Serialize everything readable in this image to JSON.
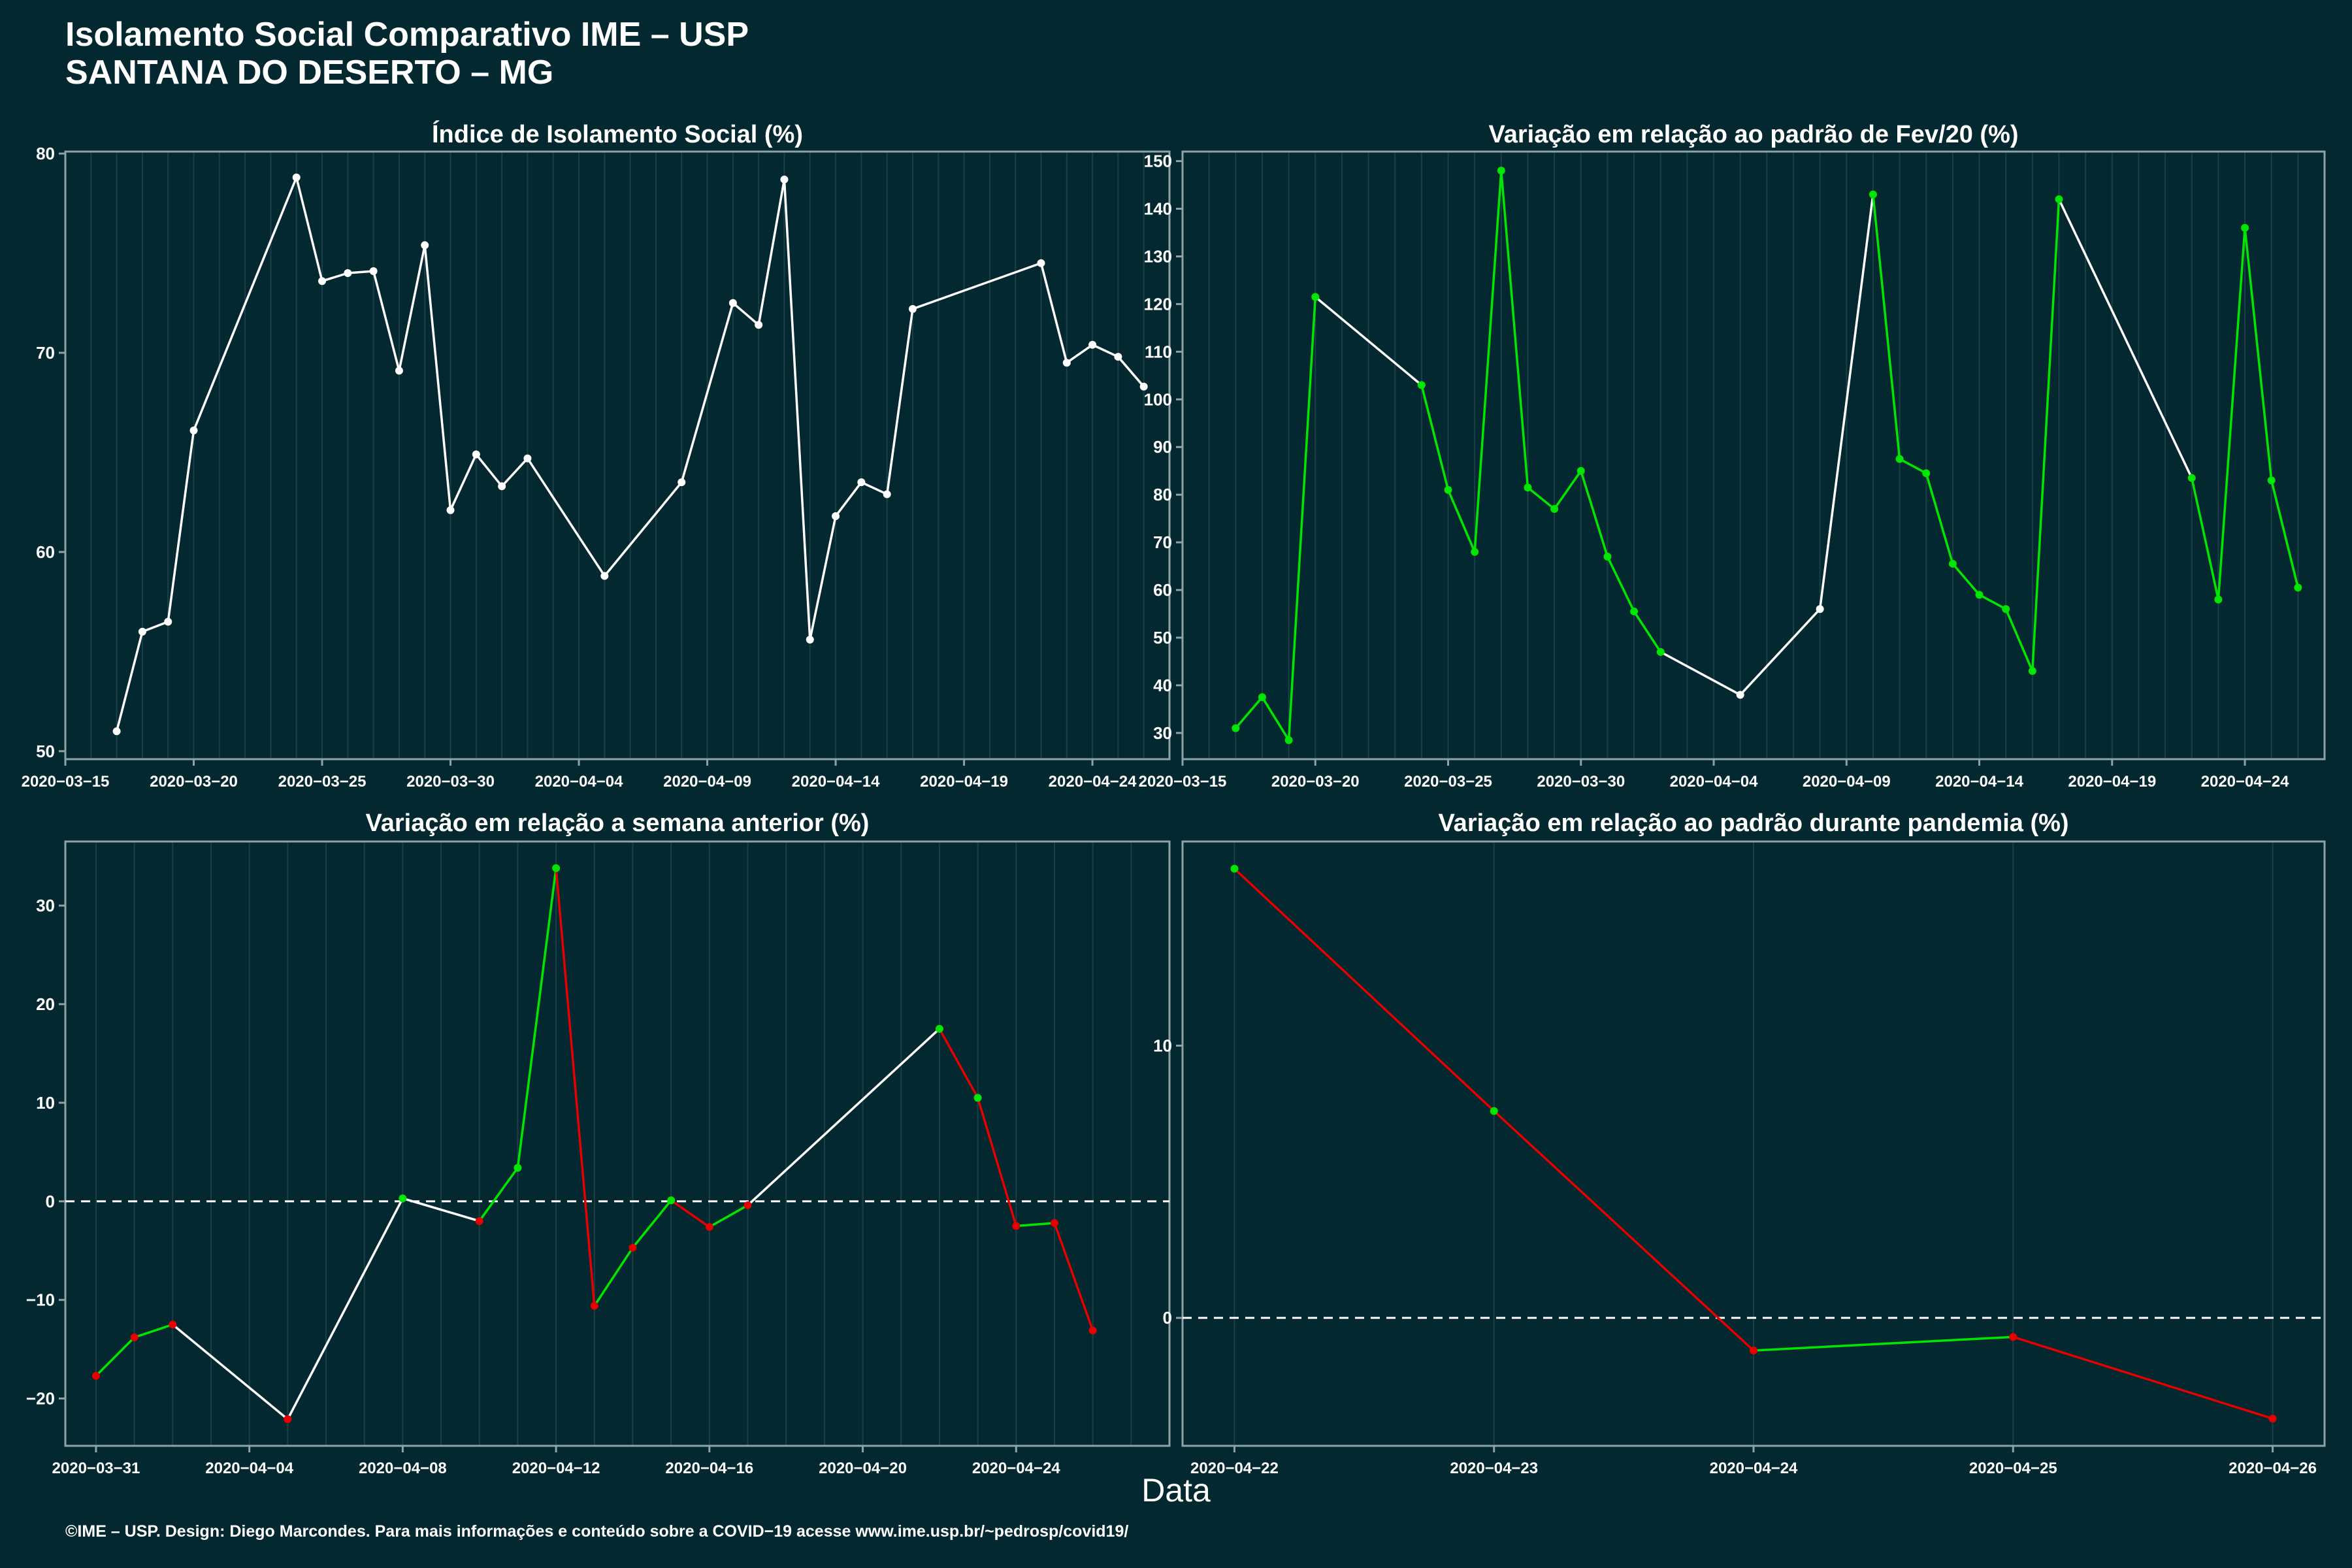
{
  "header": {
    "title_line1": "Isolamento Social Comparativo IME – USP",
    "title_line2": "SANTANA DO DESERTO – MG"
  },
  "footer": "©IME – USP. Design: Diego Marcondes. Para mais informações e conteúdo sobre a COVID−19 acesse www.ime.usp.br/~pedrosp/covid19/",
  "xlabel": "Data",
  "colors": {
    "background": "#03282f",
    "line_default": "#ffffff",
    "up": "#00e600",
    "down": "#e60000",
    "grid": "#1b3f46",
    "axis": "#8fa3a6"
  },
  "chart_data": [
    {
      "type": "line",
      "title": "Índice de Isolamento Social (%)",
      "coloring": "white",
      "x": [
        "2020-03-17",
        "2020-03-18",
        "2020-03-19",
        "2020-03-20",
        "2020-03-24",
        "2020-03-25",
        "2020-03-26",
        "2020-03-27",
        "2020-03-28",
        "2020-03-29",
        "2020-03-30",
        "2020-03-31",
        "2020-04-01",
        "2020-04-02",
        "2020-04-05",
        "2020-04-08",
        "2020-04-10",
        "2020-04-11",
        "2020-04-12",
        "2020-04-13",
        "2020-04-14",
        "2020-04-15",
        "2020-04-16",
        "2020-04-17",
        "2020-04-22",
        "2020-04-23",
        "2020-04-24",
        "2020-04-25",
        "2020-04-26"
      ],
      "y": [
        51.0,
        56.0,
        56.5,
        66.1,
        78.8,
        73.6,
        74.0,
        74.1,
        69.1,
        75.4,
        62.1,
        64.9,
        63.3,
        64.7,
        58.8,
        63.5,
        72.5,
        71.4,
        78.7,
        55.6,
        61.8,
        63.5,
        62.9,
        72.2,
        74.5,
        69.5,
        70.4,
        69.8,
        68.3
      ],
      "xlim": [
        "2020-03-15",
        "2020-04-27"
      ],
      "ylim": [
        49.6,
        80.1
      ],
      "xticks": [
        "2020-03-15",
        "2020-03-20",
        "2020-03-25",
        "2020-03-30",
        "2020-04-04",
        "2020-04-09",
        "2020-04-14",
        "2020-04-19",
        "2020-04-24"
      ],
      "yticks": [
        50,
        60,
        70,
        80
      ],
      "grid": true
    },
    {
      "type": "line",
      "title": "Variação em relação ao padrão de Fev/20 (%)",
      "coloring": "consecutive-up-green",
      "x": [
        "2020-03-17",
        "2020-03-18",
        "2020-03-19",
        "2020-03-20",
        "2020-03-24",
        "2020-03-25",
        "2020-03-26",
        "2020-03-27",
        "2020-03-28",
        "2020-03-29",
        "2020-03-30",
        "2020-03-31",
        "2020-04-01",
        "2020-04-02",
        "2020-04-05",
        "2020-04-08",
        "2020-04-10",
        "2020-04-11",
        "2020-04-12",
        "2020-04-13",
        "2020-04-14",
        "2020-04-15",
        "2020-04-16",
        "2020-04-17",
        "2020-04-22",
        "2020-04-23",
        "2020-04-24",
        "2020-04-25",
        "2020-04-26"
      ],
      "y": [
        31,
        37.5,
        28.5,
        121.5,
        103,
        81,
        68,
        148,
        81.5,
        77,
        85,
        67,
        55.5,
        47,
        38,
        56,
        143,
        87.5,
        84.5,
        65.5,
        59,
        56,
        43,
        142,
        83.5,
        58,
        136,
        83,
        60.5
      ],
      "xlim": [
        "2020-03-15",
        "2020-04-27"
      ],
      "ylim": [
        24.5,
        152
      ],
      "xticks": [
        "2020-03-15",
        "2020-03-20",
        "2020-03-25",
        "2020-03-30",
        "2020-04-04",
        "2020-04-09",
        "2020-04-14",
        "2020-04-19",
        "2020-04-24"
      ],
      "yticks": [
        30,
        40,
        50,
        60,
        70,
        80,
        90,
        100,
        110,
        120,
        130,
        140,
        150
      ],
      "grid": true
    },
    {
      "type": "line",
      "title": "Variação em relação a semana anterior (%)",
      "coloring": "sign",
      "x": [
        "2020-03-31",
        "2020-04-01",
        "2020-04-02",
        "2020-04-05",
        "2020-04-08",
        "2020-04-10",
        "2020-04-11",
        "2020-04-12",
        "2020-04-13",
        "2020-04-14",
        "2020-04-15",
        "2020-04-16",
        "2020-04-17",
        "2020-04-22",
        "2020-04-23",
        "2020-04-24",
        "2020-04-25",
        "2020-04-26"
      ],
      "y": [
        -17.7,
        -13.8,
        -12.5,
        -22.1,
        0.3,
        -2.0,
        3.4,
        33.8,
        -10.6,
        -4.7,
        0.1,
        -2.6,
        -0.4,
        17.5,
        10.5,
        -2.5,
        -2.2,
        -13.1
      ],
      "xlim": [
        "2020-03-30.2",
        "2020-04-28"
      ],
      "ylim": [
        -24.8,
        36.5
      ],
      "xticks": [
        "2020-03-31",
        "2020-04-04",
        "2020-04-08",
        "2020-04-12",
        "2020-04-16",
        "2020-04-20",
        "2020-04-24"
      ],
      "yticks": [
        -20,
        -10,
        0,
        10,
        20,
        30
      ],
      "zero_line": true,
      "grid": true
    },
    {
      "type": "line",
      "title": "Variação em relação ao padrão durante pandemia (%)",
      "coloring": "sign",
      "x": [
        "2020-04-22",
        "2020-04-23",
        "2020-04-24",
        "2020-04-25",
        "2020-04-26"
      ],
      "y": [
        16.5,
        7.6,
        -1.2,
        -0.7,
        -3.7
      ],
      "xlim": [
        "2020-04-21.8",
        "2020-04-26.2"
      ],
      "ylim": [
        -4.7,
        17.5
      ],
      "xticks": [
        "2020-04-22",
        "2020-04-23",
        "2020-04-24",
        "2020-04-25",
        "2020-04-26"
      ],
      "yticks": [
        0,
        10
      ],
      "zero_line": true,
      "grid": true
    }
  ]
}
